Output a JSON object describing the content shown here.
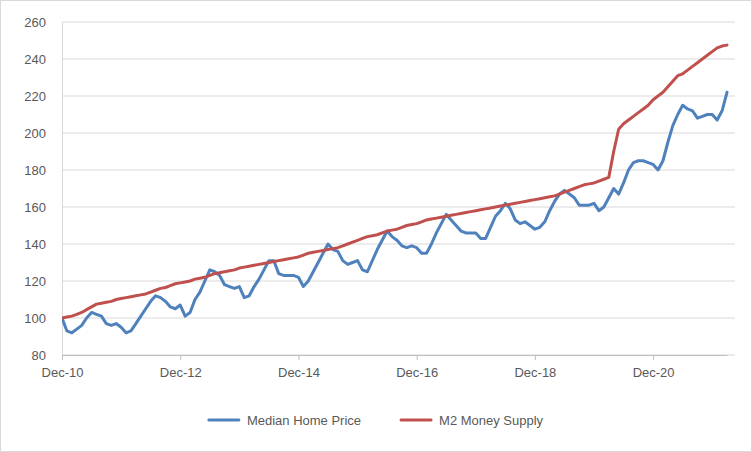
{
  "chart_data": {
    "type": "line",
    "categories": [
      "Dec-10",
      null,
      null,
      null,
      null,
      null,
      null,
      null,
      null,
      null,
      null,
      null,
      null,
      null,
      null,
      null,
      null,
      null,
      null,
      null,
      null,
      null,
      null,
      null,
      "Dec-12",
      null,
      null,
      null,
      null,
      null,
      null,
      null,
      null,
      null,
      null,
      null,
      null,
      null,
      null,
      null,
      null,
      null,
      null,
      null,
      null,
      null,
      null,
      null,
      "Dec-14",
      null,
      null,
      null,
      null,
      null,
      null,
      null,
      null,
      null,
      null,
      null,
      null,
      null,
      null,
      null,
      null,
      null,
      null,
      null,
      null,
      null,
      null,
      null,
      "Dec-16",
      null,
      null,
      null,
      null,
      null,
      null,
      null,
      null,
      null,
      null,
      null,
      null,
      null,
      null,
      null,
      null,
      null,
      null,
      null,
      null,
      null,
      null,
      null,
      "Dec-18",
      null,
      null,
      null,
      null,
      null,
      null,
      null,
      null,
      null,
      null,
      null,
      null,
      null,
      null,
      null,
      null,
      null,
      null,
      null,
      null,
      null,
      null,
      null,
      "Dec-20",
      null,
      null,
      null,
      null,
      null,
      null,
      null,
      null,
      null,
      null,
      null,
      null,
      null,
      null,
      null
    ],
    "series": [
      {
        "name": "Median Home Price",
        "color": "#4F81BD",
        "values": [
          100,
          93,
          92,
          94,
          96,
          100,
          103,
          102,
          101,
          97,
          96,
          97,
          95,
          92,
          93,
          97,
          101,
          105,
          109,
          112,
          111,
          109,
          106,
          105,
          107,
          101,
          103,
          110,
          114,
          120,
          126,
          125,
          123,
          118,
          117,
          116,
          117,
          111,
          112,
          117,
          121,
          126,
          131,
          131,
          124,
          123,
          123,
          123,
          122,
          117,
          120,
          125,
          130,
          135,
          140,
          137,
          136,
          131,
          129,
          130,
          131,
          126,
          125,
          131,
          137,
          142,
          147,
          144,
          142,
          139,
          138,
          139,
          138,
          135,
          135,
          140,
          146,
          151,
          156,
          153,
          150,
          147,
          146,
          146,
          146,
          143,
          143,
          149,
          155,
          158,
          162,
          159,
          153,
          151,
          152,
          150,
          148,
          149,
          152,
          158,
          163,
          167,
          169,
          167,
          165,
          161,
          161,
          161,
          162,
          158,
          160,
          165,
          170,
          167,
          173,
          180,
          184,
          185,
          185,
          184,
          183,
          180,
          185,
          195,
          204,
          210,
          215,
          213,
          212,
          208,
          209,
          210,
          210,
          207,
          212,
          222
        ]
      },
      {
        "name": "M2 Money Supply",
        "color": "#C0504D",
        "values": [
          100,
          100.5,
          101,
          102,
          103,
          104.5,
          106,
          107.5,
          108,
          108.5,
          109,
          110,
          110.5,
          111,
          111.5,
          112,
          112.5,
          113,
          114,
          115,
          116,
          116.5,
          117.5,
          118.5,
          119,
          119.5,
          120,
          121,
          121.5,
          122,
          123,
          124,
          124.5,
          125,
          125.5,
          126,
          127,
          127.5,
          128,
          128.5,
          129,
          129.5,
          130,
          130.5,
          131,
          131.5,
          132,
          132.5,
          133,
          134,
          135,
          135.5,
          136,
          136.5,
          137,
          137.5,
          138,
          139,
          140,
          141,
          142,
          143,
          144,
          144.5,
          145,
          146,
          147,
          147.5,
          148,
          149,
          150,
          150.5,
          151,
          152,
          153,
          153.5,
          154,
          154.5,
          155,
          155.5,
          156,
          156.5,
          157,
          157.5,
          158,
          158.5,
          159,
          159.5,
          160,
          160.5,
          161,
          161.5,
          162,
          162.5,
          163,
          163.5,
          164,
          164.5,
          165,
          165.5,
          166,
          167,
          168,
          169,
          170,
          171,
          172,
          172.5,
          173,
          174,
          175,
          176,
          190,
          202,
          205,
          207,
          209,
          211,
          213,
          215,
          218,
          220,
          222,
          225,
          228,
          231,
          232,
          234,
          236,
          238,
          240,
          242,
          244,
          246,
          247,
          247.5
        ]
      }
    ],
    "ylim": [
      80,
      260
    ],
    "yticks": [
      80,
      100,
      120,
      140,
      160,
      180,
      200,
      220,
      240,
      260
    ],
    "grid": true,
    "legend": "bottom"
  }
}
